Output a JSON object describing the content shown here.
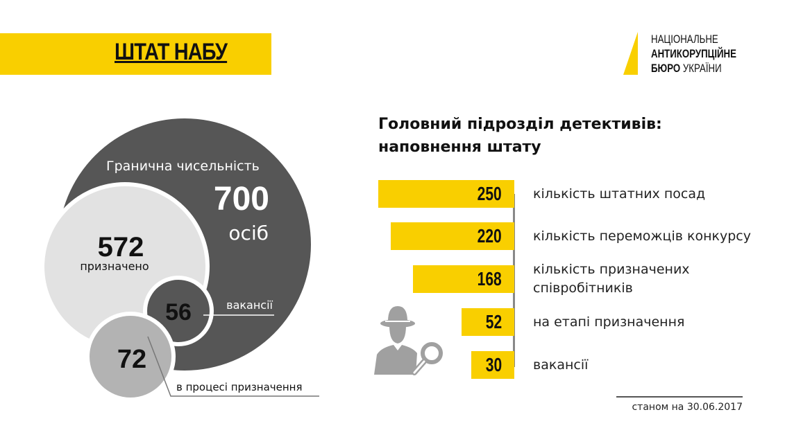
{
  "header": {
    "title": "ШТАТ НАБУ"
  },
  "logo": {
    "line1": "НАЦІОНАЛЬНЕ",
    "line2": "АНТИКОРУПЦІЙНЕ",
    "line3_bold": "БЮРО",
    "line3_regular": "УКРАЇНИ"
  },
  "colors": {
    "accent": "#f9cf00",
    "dark": "#565656",
    "light": "#e2e2e2",
    "mid": "#b3b3b3"
  },
  "chart_data": [
    {
      "type": "bubble",
      "items": [
        {
          "label": "Гранична чисельність",
          "value": "700",
          "unit": "осіб"
        },
        {
          "label": "призначено",
          "value": "572"
        },
        {
          "label": "вакансії",
          "value": "56"
        },
        {
          "label": "в процесі призначення",
          "value": "72"
        }
      ]
    },
    {
      "type": "bar",
      "orientation": "horizontal",
      "title": "Головний підрозділ детективів: наповнення штату",
      "title_line1": "Головний підрозділ детективів:",
      "title_line2": "наповнення штату",
      "categories": [
        "кількість штатних посад",
        "кількість переможців конкурсу",
        "кількість призначених співробітників",
        "на етапі призначення",
        "вакансії"
      ],
      "label_lines": [
        [
          "кількість штатних посад"
        ],
        [
          "кількість переможців конкурсу"
        ],
        [
          "кількість призначених",
          "співробітників"
        ],
        [
          "на етапі призначення"
        ],
        [
          "вакансії"
        ]
      ],
      "values": [
        250,
        220,
        168,
        52,
        30
      ]
    }
  ],
  "footer": {
    "as_of": "станом на 30.06.2017"
  }
}
